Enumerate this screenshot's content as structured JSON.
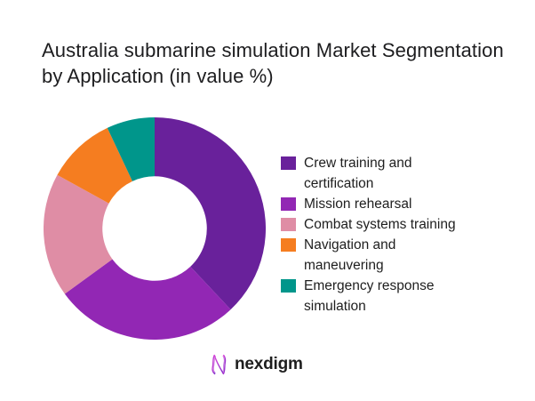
{
  "title": "Australia submarine simulation Market Segmentation\nby Application (in value %)",
  "chart_data": {
    "type": "pie",
    "subtype": "donut",
    "title": "Australia submarine simulation Market Segmentation by Application (in value %)",
    "unit": "value %",
    "categories": [
      "Crew training and certification",
      "Mission rehearsal",
      "Combat systems training",
      "Navigation and maneuvering",
      "Emergency response simulation"
    ],
    "values": [
      38,
      27,
      18,
      10,
      7
    ],
    "colors": [
      "#69219B",
      "#9227B4",
      "#DF8DA5",
      "#F57D20",
      "#00968B"
    ],
    "start_angle_deg": 0,
    "direction": "clockwise",
    "inner_radius_ratio": 0.47,
    "legend_position": "right",
    "data_labels": false
  },
  "legend": {
    "items": [
      {
        "label": "Crew training and\ncertification",
        "color": "#69219B"
      },
      {
        "label": "Mission rehearsal",
        "color": "#9227B4"
      },
      {
        "label": "Combat systems training",
        "color": "#DF8DA5"
      },
      {
        "label": "Navigation and\nmaneuvering",
        "color": "#F57D20"
      },
      {
        "label": "Emergency response\nsimulation",
        "color": "#00968B"
      }
    ]
  },
  "footer": {
    "logo_text": "nexdigm",
    "logo_color": "#8A2BC9",
    "logo_gradient_start": "#E145D9",
    "logo_gradient_end": "#7C2BC9"
  }
}
